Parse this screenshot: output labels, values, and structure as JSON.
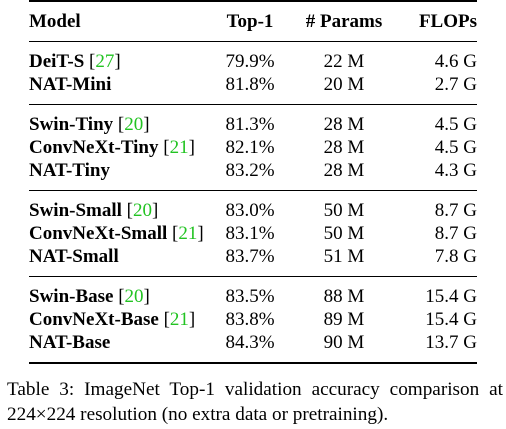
{
  "table": {
    "headers": {
      "model": "Model",
      "top1": "Top-1",
      "params": "# Params",
      "flops": "FLOPs"
    },
    "groups": [
      {
        "rows": [
          {
            "model": "DeiT-S",
            "cite": "27",
            "top1": "79.9%",
            "params": "22 M",
            "flops": "4.6 G"
          },
          {
            "model": "NAT-Mini",
            "cite": "",
            "top1": "81.8%",
            "params": "20 M",
            "flops": "2.7 G"
          }
        ]
      },
      {
        "rows": [
          {
            "model": "Swin-Tiny",
            "cite": "20",
            "top1": "81.3%",
            "params": "28 M",
            "flops": "4.5 G"
          },
          {
            "model": "ConvNeXt-Tiny",
            "cite": "21",
            "top1": "82.1%",
            "params": "28 M",
            "flops": "4.5 G"
          },
          {
            "model": "NAT-Tiny",
            "cite": "",
            "top1": "83.2%",
            "params": "28 M",
            "flops": "4.3 G"
          }
        ]
      },
      {
        "rows": [
          {
            "model": "Swin-Small",
            "cite": "20",
            "top1": "83.0%",
            "params": "50 M",
            "flops": "8.7 G"
          },
          {
            "model": "ConvNeXt-Small",
            "cite": "21",
            "top1": "83.1%",
            "params": "50 M",
            "flops": "8.7 G"
          },
          {
            "model": "NAT-Small",
            "cite": "",
            "top1": "83.7%",
            "params": "51 M",
            "flops": "7.8 G"
          }
        ]
      },
      {
        "rows": [
          {
            "model": "Swin-Base",
            "cite": "20",
            "top1": "83.5%",
            "params": "88 M",
            "flops": "15.4 G"
          },
          {
            "model": "ConvNeXt-Base",
            "cite": "21",
            "top1": "83.8%",
            "params": "89 M",
            "flops": "15.4 G"
          },
          {
            "model": "NAT-Base",
            "cite": "",
            "top1": "84.3%",
            "params": "90 M",
            "flops": "13.7 G"
          }
        ]
      }
    ]
  },
  "caption": "Table 3: ImageNet Top-1 validation accuracy comparison at 224×224 resolution (no extra data or pretraining).",
  "colors": {
    "citation": "#22c322",
    "text": "#000000"
  }
}
